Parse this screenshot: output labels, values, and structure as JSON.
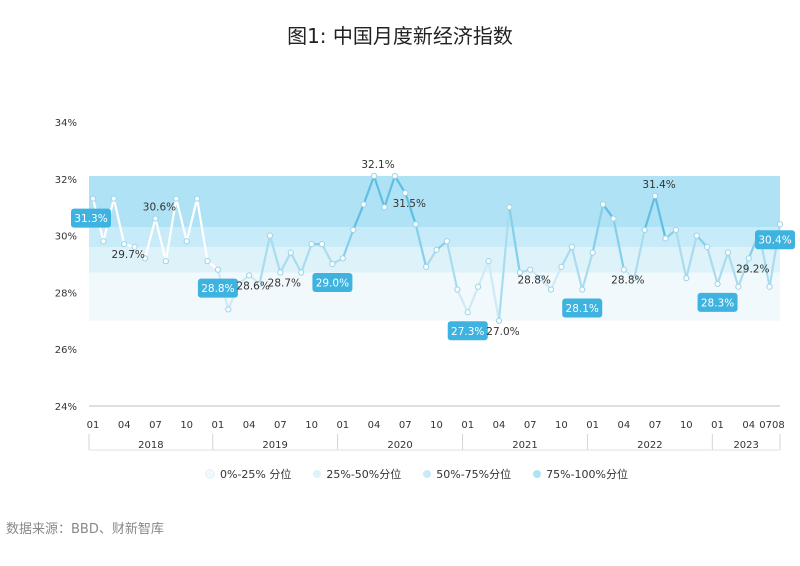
{
  "title": "图1: 中国月度新经济指数",
  "source": "数据来源：BBD、财新智库",
  "legend": [
    {
      "label": "0%-25% 分位",
      "color": "#f1f9fd"
    },
    {
      "label": "25%-50%分位",
      "color": "#def2fa"
    },
    {
      "label": "50%-75%分位",
      "color": "#c7ebf8"
    },
    {
      "label": "75%-100%分位",
      "color": "#b0e2f5"
    }
  ],
  "chart_data": {
    "type": "line",
    "ylabel_ticks": [
      "24%",
      "26%",
      "28%",
      "30%",
      "32%",
      "34%"
    ],
    "ylim": [
      24,
      34
    ],
    "year_labels": [
      "2018",
      "2019",
      "2020",
      "2021",
      "2022",
      "2023"
    ],
    "month_ticks": [
      "01",
      "04",
      "07",
      "10"
    ],
    "last_tick_label": "0708",
    "bands": [
      {
        "from": 27.0,
        "to": 28.7,
        "color": "#f1f9fd"
      },
      {
        "from": 28.7,
        "to": 29.6,
        "color": "#def2fa"
      },
      {
        "from": 29.6,
        "to": 30.3,
        "color": "#c7ebf8"
      },
      {
        "from": 30.3,
        "to": 32.1,
        "color": "#b0e2f5"
      }
    ],
    "series": [
      {
        "values": [
          31.3,
          29.8,
          31.3,
          29.7,
          29.6,
          29.2,
          30.6,
          29.1,
          31.3,
          29.8,
          31.3,
          29.1,
          28.8,
          27.4,
          28.3,
          28.6,
          28.3,
          30.0,
          28.7,
          29.4,
          28.7,
          29.7,
          29.7,
          29.0,
          29.2,
          30.2,
          31.1,
          32.1,
          31.0,
          32.1,
          31.5,
          30.4,
          28.9,
          29.5,
          29.8,
          28.1,
          27.3,
          28.2,
          29.1,
          27.0,
          31.0,
          28.7,
          28.8,
          28.5,
          28.1,
          28.9,
          29.6,
          28.1,
          29.4,
          31.1,
          30.6,
          28.8,
          28.5,
          30.2,
          31.4,
          29.9,
          30.2,
          28.5,
          30.0,
          29.6,
          28.3,
          29.4,
          28.2,
          29.2,
          30.1,
          28.2,
          30.4
        ]
      }
    ],
    "data_labels": [
      {
        "text": "31.3%",
        "index": 0,
        "callout": true
      },
      {
        "text": "29.7%",
        "index": 3,
        "callout": false
      },
      {
        "text": "30.6%",
        "index": 6,
        "callout": false
      },
      {
        "text": "28.8%",
        "index": 12,
        "callout": true
      },
      {
        "text": "28.6%",
        "index": 15,
        "callout": false
      },
      {
        "text": "28.7%",
        "index": 18,
        "callout": false
      },
      {
        "text": "29.0%",
        "index": 23,
        "callout": true
      },
      {
        "text": "32.1%",
        "index": 27,
        "callout": false
      },
      {
        "text": "31.5%",
        "index": 30,
        "callout": false
      },
      {
        "text": "27.3%",
        "index": 36,
        "callout": true
      },
      {
        "text": "27.0%",
        "index": 39,
        "callout": false
      },
      {
        "text": "28.8%",
        "index": 42,
        "callout": false
      },
      {
        "text": "28.1%",
        "index": 47,
        "callout": true
      },
      {
        "text": "28.8%",
        "index": 51,
        "callout": false
      },
      {
        "text": "31.4%",
        "index": 54,
        "callout": false
      },
      {
        "text": "28.3%",
        "index": 60,
        "callout": true
      },
      {
        "text": "29.2%",
        "index": 63,
        "callout": false
      },
      {
        "text": "30.4%",
        "index": 66,
        "callout": true
      }
    ]
  }
}
